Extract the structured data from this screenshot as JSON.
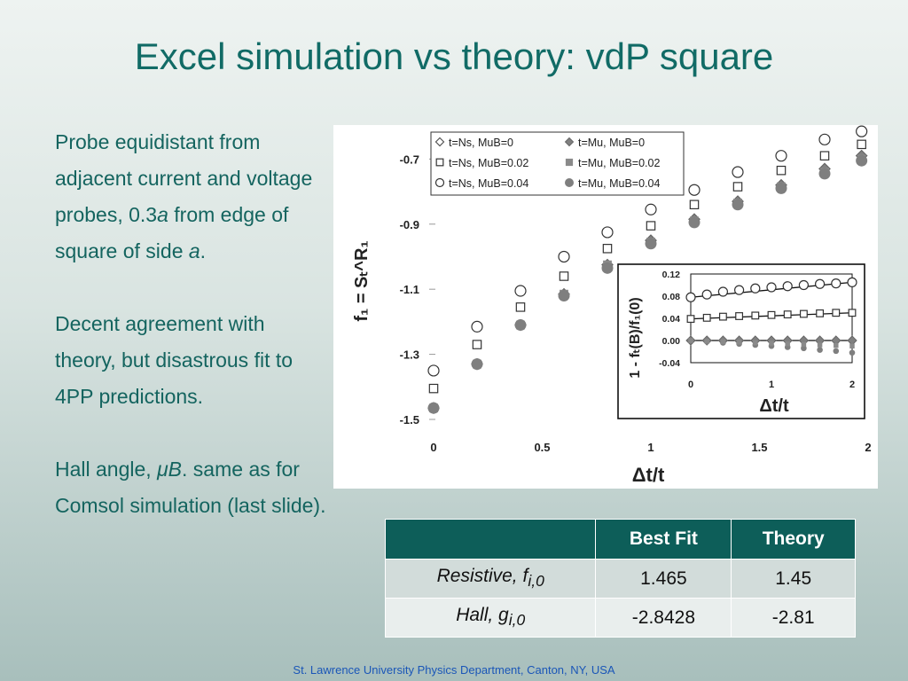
{
  "slide": {
    "title": "Excel simulation vs theory: vdP square",
    "footer": "St. Lawrence University Physics Department, Canton, NY, USA"
  },
  "bullets": {
    "p1": {
      "a": "Probe equidistant from adjacent current and voltage probes, 0.3",
      "b": "a",
      "c": " from edge of square of side ",
      "d": "a",
      "e": "."
    },
    "p2": "Decent agreement with theory, but disastrous fit to 4PP predictions.",
    "p3": {
      "a": "Hall angle, ",
      "b": "μB",
      "c": ". same as for Comsol simulation (last slide)."
    }
  },
  "table": {
    "headers": [
      "",
      "Best Fit",
      "Theory"
    ],
    "rows": [
      {
        "label": "Resistive, f",
        "sub": "i,0",
        "best_fit": "1.465",
        "theory": "1.45"
      },
      {
        "label": "Hall, g",
        "sub": "i,0",
        "best_fit": "-2.8428",
        "theory": "-2.81"
      }
    ]
  },
  "chart_data": [
    {
      "type": "scatter",
      "xlabel": "Δt/t",
      "ylabel": "f₁ = Sₜ^R₁",
      "xlim": [
        0,
        2
      ],
      "ylim": [
        -1.5,
        -0.65
      ],
      "xticks": [
        "0",
        "0.5",
        "1",
        "1.5",
        "2"
      ],
      "yticks": [
        "-0.7",
        "-0.9",
        "-1.1",
        "-1.3",
        "-1.5"
      ],
      "legend": [
        "t=Ns, MuB=0",
        "t=Mu, MuB=0",
        "t=Ns, MuB=0.02",
        "t=Mu, MuB=0.02",
        "t=Ns, MuB=0.04",
        "t=Mu, MuB=0.04"
      ],
      "legend_placement": "top",
      "x": [
        0,
        0.2,
        0.4,
        0.6,
        0.8,
        1.0,
        1.2,
        1.4,
        1.6,
        1.8,
        1.97
      ],
      "series": [
        {
          "name": "t=Ns, MuB=0",
          "marker": "diamond-open",
          "values": [
            -1.465,
            -1.33,
            -1.21,
            -1.115,
            -1.025,
            -0.95,
            -0.885,
            -0.83,
            -0.78,
            -0.73,
            -0.69
          ]
        },
        {
          "name": "t=Mu, MuB=0",
          "marker": "diamond-filled",
          "values": [
            -1.465,
            -1.33,
            -1.21,
            -1.115,
            -1.025,
            -0.95,
            -0.885,
            -0.83,
            -0.78,
            -0.73,
            -0.69
          ]
        },
        {
          "name": "t=Ns, MuB=0.02",
          "marker": "square-open",
          "values": [
            -1.405,
            -1.27,
            -1.155,
            -1.06,
            -0.975,
            -0.905,
            -0.84,
            -0.785,
            -0.735,
            -0.69,
            -0.655
          ]
        },
        {
          "name": "t=Mu, MuB=0.02",
          "marker": "square-filled",
          "values": [
            -1.465,
            -1.33,
            -1.21,
            -1.115,
            -1.025,
            -0.955,
            -0.89,
            -0.835,
            -0.785,
            -0.74,
            -0.7
          ]
        },
        {
          "name": "t=Ns, MuB=0.04",
          "marker": "circle-open",
          "values": [
            -1.35,
            -1.215,
            -1.105,
            -1.0,
            -0.925,
            -0.855,
            -0.795,
            -0.74,
            -0.69,
            -0.64,
            -0.615
          ]
        },
        {
          "name": "t=Mu, MuB=0.04",
          "marker": "circle-filled",
          "values": [
            -1.465,
            -1.33,
            -1.21,
            -1.12,
            -1.035,
            -0.96,
            -0.895,
            -0.84,
            -0.79,
            -0.745,
            -0.705
          ]
        }
      ]
    },
    {
      "type": "scatter",
      "xlabel": "Δt/t",
      "ylabel": "1 - fₜ(B)/f₁(0)",
      "xlim": [
        0,
        2
      ],
      "ylim": [
        -0.04,
        0.12
      ],
      "xticks": [
        "0",
        "1",
        "2"
      ],
      "yticks": [
        "0.12",
        "0.08",
        "0.04",
        "0.00",
        "-0.04"
      ],
      "x": [
        0,
        0.2,
        0.4,
        0.6,
        0.8,
        1.0,
        1.2,
        1.4,
        1.6,
        1.8,
        2.0
      ],
      "series": [
        {
          "name": "t=Ns, MuB=0.04",
          "marker": "circle-open",
          "values": [
            0.078,
            0.083,
            0.088,
            0.091,
            0.094,
            0.096,
            0.098,
            0.1,
            0.102,
            0.103,
            0.105
          ]
        },
        {
          "name": "t=Ns, MuB=0.02",
          "marker": "square-open",
          "values": [
            0.039,
            0.041,
            0.043,
            0.044,
            0.045,
            0.046,
            0.047,
            0.048,
            0.049,
            0.05,
            0.05
          ]
        },
        {
          "name": "t=Ns, MuB=0",
          "marker": "diamond-filled",
          "values": [
            0,
            0,
            0,
            0,
            0,
            0,
            0,
            0,
            0,
            0,
            0
          ]
        },
        {
          "name": "t=Mu, MuB=0.04",
          "marker": "circle-filled",
          "values": [
            0,
            -0.002,
            -0.004,
            -0.006,
            -0.008,
            -0.01,
            -0.012,
            -0.014,
            -0.017,
            -0.019,
            -0.022
          ]
        },
        {
          "name": "t=Mu, MuB=0.02",
          "marker": "square-filled",
          "values": [
            0,
            -0.001,
            -0.002,
            -0.003,
            -0.004,
            -0.005,
            -0.006,
            -0.007,
            -0.008,
            -0.009,
            -0.01
          ]
        }
      ]
    }
  ]
}
